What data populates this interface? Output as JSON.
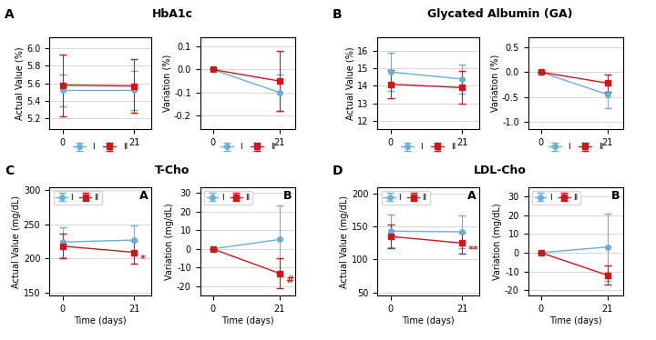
{
  "chart_data": [
    {
      "type": "line",
      "title": "HbA1c",
      "ylabel": "Actual Value (%)",
      "x": [
        0,
        21
      ],
      "xlim": [
        -4,
        26
      ],
      "xticks": [
        0,
        21
      ],
      "ylim": [
        5.08,
        6.12
      ],
      "yticks": [
        5.2,
        5.4,
        5.6,
        5.8,
        6.0
      ],
      "grid": "y",
      "legend": "lower center",
      "series": [
        {
          "name": "I",
          "color": "#6baed6",
          "marker": "circle",
          "line_style": "solid",
          "values": [
            5.52,
            5.52
          ],
          "yerr": [
            0.18,
            0.22
          ]
        },
        {
          "name": "II",
          "color": "#cb181d",
          "marker": "square",
          "line_style": "solid",
          "values": [
            5.58,
            5.57
          ],
          "yerr": [
            0.35,
            0.3
          ]
        }
      ],
      "annotations": [
        {
          "text": "A"
        }
      ]
    },
    {
      "type": "line",
      "ylabel": "Variation (%)",
      "x": [
        0,
        21
      ],
      "xlim": [
        -4,
        26
      ],
      "xticks": [
        0,
        21
      ],
      "ylim": [
        -0.26,
        0.14
      ],
      "yticks": [
        -0.2,
        -0.1,
        0.0,
        0.1
      ],
      "grid": "y",
      "legend": "lower center",
      "series": [
        {
          "name": "I",
          "color": "#6baed6",
          "marker": "circle",
          "line_style": "solid",
          "values": [
            0.0,
            -0.1
          ],
          "yerr": [
            0.0,
            0.08
          ]
        },
        {
          "name": "II",
          "color": "#cb181d",
          "marker": "square",
          "line_style": "solid",
          "values": [
            0.0,
            -0.05
          ],
          "yerr": [
            0.0,
            0.13
          ]
        }
      ]
    },
    {
      "type": "line",
      "title": "Glycated Albumin (GA)",
      "ylabel": "Actual Value (%)",
      "x": [
        0,
        21
      ],
      "xlim": [
        -4,
        26
      ],
      "xticks": [
        0,
        21
      ],
      "ylim": [
        11.5,
        16.8
      ],
      "yticks": [
        12,
        13,
        14,
        15,
        16
      ],
      "grid": "y",
      "legend": "lower center",
      "series": [
        {
          "name": "I",
          "color": "#6baed6",
          "marker": "circle",
          "line_style": "solid",
          "values": [
            14.8,
            14.4
          ],
          "yerr": [
            1.1,
            0.85
          ]
        },
        {
          "name": "II",
          "color": "#cb181d",
          "marker": "square",
          "line_style": "solid",
          "values": [
            14.1,
            13.9
          ],
          "yerr": [
            0.8,
            0.95
          ]
        }
      ],
      "annotations": [
        {
          "text": "B"
        }
      ]
    },
    {
      "type": "line",
      "ylabel": "Variation (%)",
      "x": [
        0,
        21
      ],
      "xlim": [
        -4,
        26
      ],
      "xticks": [
        0,
        21
      ],
      "ylim": [
        -1.15,
        0.7
      ],
      "yticks": [
        -1.0,
        -0.5,
        0.0,
        0.5
      ],
      "grid": "y",
      "legend": "lower center",
      "series": [
        {
          "name": "I",
          "color": "#6baed6",
          "marker": "circle",
          "line_style": "solid",
          "values": [
            0.0,
            -0.45
          ],
          "yerr": [
            0.0,
            0.28
          ]
        },
        {
          "name": "II",
          "color": "#cb181d",
          "marker": "square",
          "line_style": "solid",
          "values": [
            0.0,
            -0.22
          ],
          "yerr": [
            0.0,
            0.18
          ]
        }
      ]
    },
    {
      "type": "line",
      "title": "T-Cho",
      "ylabel": "Actual Value (mg/dL)",
      "xlabel": "Time (days)",
      "x": [
        0,
        21
      ],
      "xlim": [
        -4,
        26
      ],
      "xticks": [
        0,
        21
      ],
      "ylim": [
        145,
        305
      ],
      "yticks": [
        150,
        200,
        250,
        300
      ],
      "grid": "y",
      "legend": "upper left",
      "series": [
        {
          "name": "I",
          "color": "#6baed6",
          "marker": "circle",
          "line_style": "solid",
          "values": [
            224,
            227
          ],
          "yerr": [
            22,
            22
          ]
        },
        {
          "name": "II",
          "color": "#cb181d",
          "marker": "square",
          "line_style": "solid",
          "values": [
            218,
            209
          ],
          "yerr": [
            18,
            17
          ]
        }
      ],
      "annotations": [
        {
          "text": "C"
        },
        {
          "text": "A"
        },
        {
          "text": "*",
          "x": 21,
          "y": 209,
          "color": "#cb181d"
        }
      ]
    },
    {
      "type": "line",
      "ylabel": "Variation (mg/dL)",
      "xlabel": "Time (days)",
      "x": [
        0,
        21
      ],
      "xlim": [
        -4,
        26
      ],
      "xticks": [
        0,
        21
      ],
      "ylim": [
        -25,
        33
      ],
      "yticks": [
        -20,
        -10,
        0,
        10,
        20,
        30
      ],
      "grid": "y",
      "legend": "upper left",
      "series": [
        {
          "name": "I",
          "color": "#6baed6",
          "marker": "circle",
          "line_style": "solid",
          "values": [
            0.0,
            5.0
          ],
          "yerr": [
            0.0,
            18
          ]
        },
        {
          "name": "II",
          "color": "#cb181d",
          "marker": "square",
          "line_style": "solid",
          "values": [
            0.0,
            -13
          ],
          "yerr": [
            0.0,
            8
          ]
        }
      ],
      "annotations": [
        {
          "text": "B"
        },
        {
          "text": "#",
          "x": 21,
          "y": -13,
          "color": "#cb181d"
        }
      ]
    },
    {
      "type": "line",
      "title": "LDL-Cho",
      "ylabel": "Actual Value (mg/dL)",
      "xlabel": "Time (days)",
      "x": [
        0,
        21
      ],
      "xlim": [
        -4,
        26
      ],
      "xticks": [
        0,
        21
      ],
      "ylim": [
        45,
        210
      ],
      "yticks": [
        50,
        100,
        150,
        200
      ],
      "grid": "y",
      "legend": "upper left",
      "series": [
        {
          "name": "I",
          "color": "#6baed6",
          "marker": "circle",
          "line_style": "solid",
          "values": [
            143,
            142
          ],
          "yerr": [
            25,
            25
          ]
        },
        {
          "name": "II",
          "color": "#cb181d",
          "marker": "square",
          "line_style": "solid",
          "values": [
            135,
            125
          ],
          "yerr": [
            18,
            16
          ]
        }
      ],
      "annotations": [
        {
          "text": "D"
        },
        {
          "text": "A"
        },
        {
          "text": "**",
          "x": 21,
          "y": 125,
          "color": "#cb181d"
        }
      ]
    },
    {
      "type": "line",
      "ylabel": "Variation (mg/dL)",
      "xlabel": "Time (days)",
      "x": [
        0,
        21
      ],
      "xlim": [
        -4,
        26
      ],
      "xticks": [
        0,
        21
      ],
      "ylim": [
        -23,
        35
      ],
      "yticks": [
        -20,
        -10,
        0,
        10,
        20,
        30
      ],
      "grid": "y",
      "legend": "upper left",
      "series": [
        {
          "name": "I",
          "color": "#6baed6",
          "marker": "circle",
          "line_style": "solid",
          "values": [
            0.0,
            3
          ],
          "yerr": [
            0.0,
            18
          ]
        },
        {
          "name": "II",
          "color": "#cb181d",
          "marker": "square",
          "line_style": "solid",
          "values": [
            0.0,
            -12
          ],
          "yerr": [
            0.0,
            5
          ]
        }
      ],
      "annotations": [
        {
          "text": "B"
        }
      ]
    }
  ]
}
